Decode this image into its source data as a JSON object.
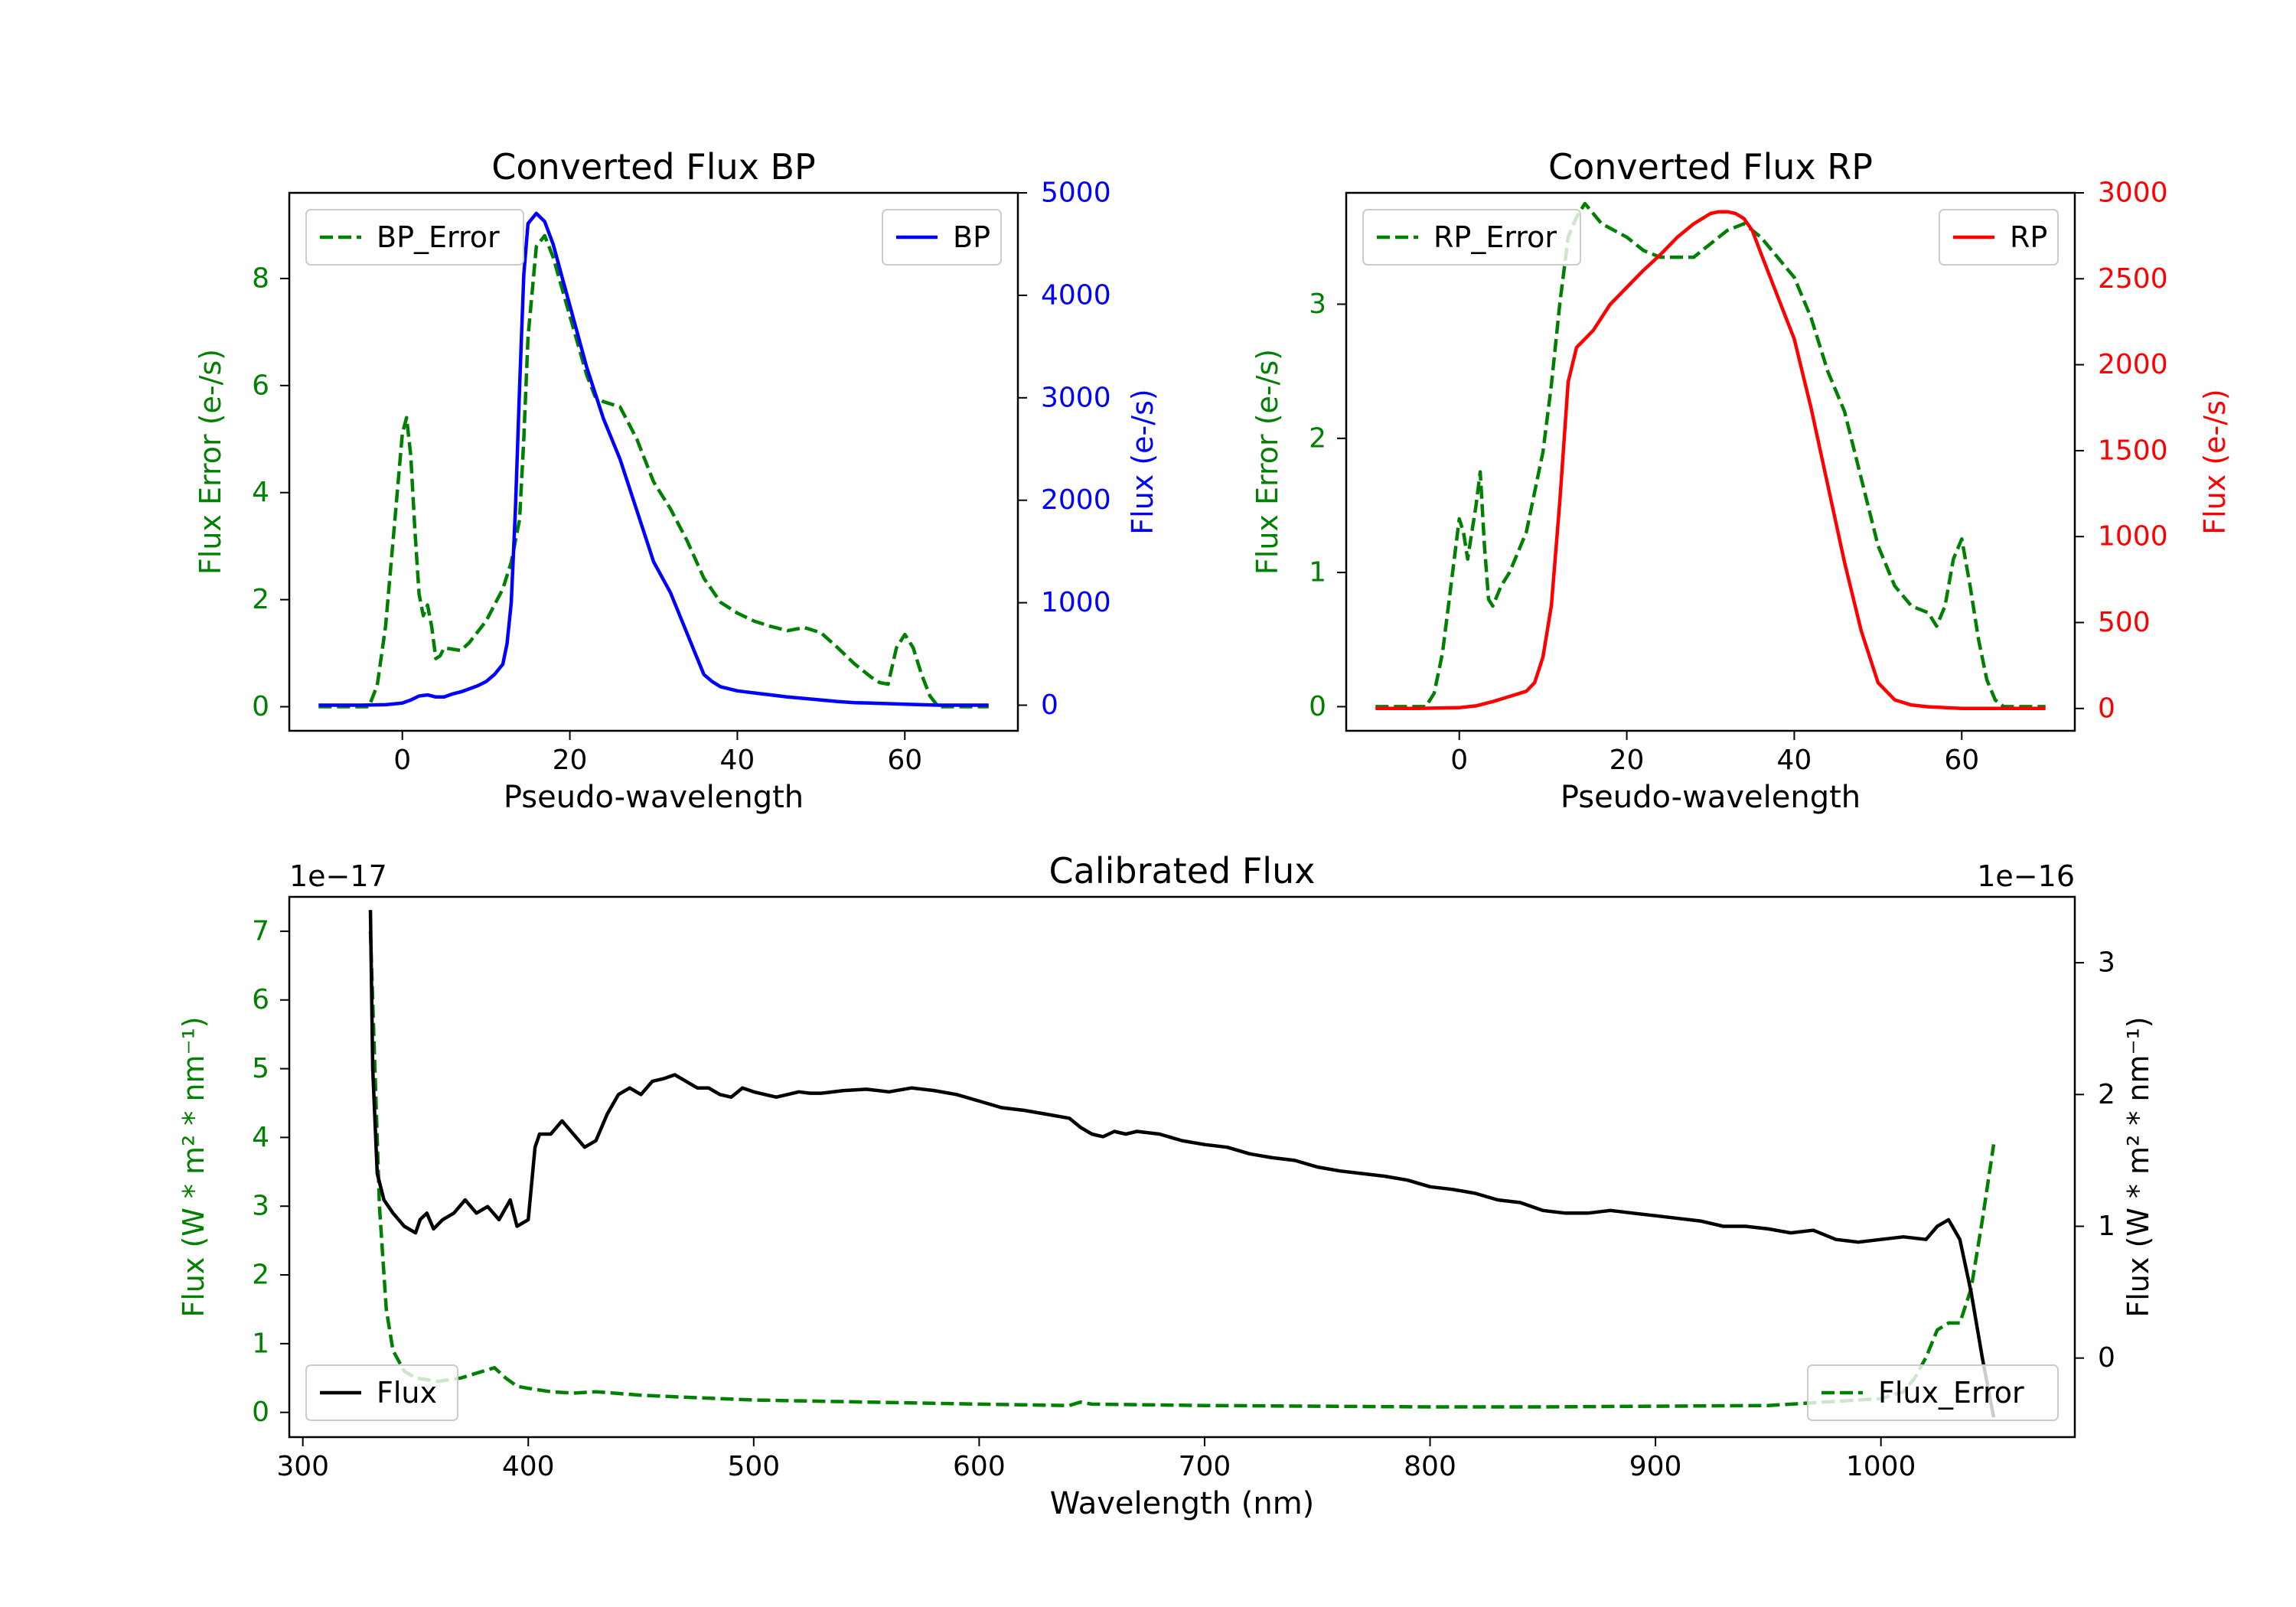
{
  "colors": {
    "green": "#008000",
    "blue": "#0000ff",
    "red": "#ff0000",
    "black": "#000000"
  },
  "chart_data": [
    {
      "id": "bp",
      "type": "line",
      "title": "Converted Flux BP",
      "xlabel": "Pseudo-wavelength",
      "ylabel_left": "Flux Error (e-/s)",
      "ylabel_right": "Flux (e-/s)",
      "xlim": [
        -13.5,
        73.5
      ],
      "ylim_left": [
        -0.45,
        9.6
      ],
      "ylim_right": [
        -250,
        5000
      ],
      "xticks": [
        0,
        20,
        40,
        60
      ],
      "yticks_left": [
        0,
        2,
        4,
        6,
        8
      ],
      "yticks_right": [
        0,
        1000,
        2000,
        3000,
        4000,
        5000
      ],
      "right_tick_color": "#0000ff",
      "series": [
        {
          "name": "BP_Error",
          "axis": "left",
          "style": "dashed",
          "color": "#008000",
          "x": [
            -10,
            -4,
            -3,
            -2,
            -1,
            0,
            0.5,
            1,
            1.5,
            2,
            2.5,
            3,
            3.5,
            4,
            4.5,
            5,
            7,
            8,
            10,
            12,
            13,
            14,
            14.5,
            15,
            16,
            17,
            18,
            20,
            22,
            23,
            24,
            26,
            28,
            30,
            32,
            34,
            36,
            38,
            40,
            42,
            44,
            46,
            48,
            50,
            52,
            54,
            56,
            57,
            58,
            59,
            60,
            61,
            62,
            63,
            64,
            70
          ],
          "y": [
            0,
            0,
            0.4,
            1.5,
            3.3,
            5.1,
            5.4,
            4.7,
            3.3,
            2.1,
            1.7,
            1.9,
            1.5,
            0.9,
            0.95,
            1.1,
            1.05,
            1.2,
            1.6,
            2.2,
            2.7,
            3.5,
            5,
            6.9,
            8.6,
            8.8,
            8.4,
            7.3,
            6.2,
            5.8,
            5.7,
            5.6,
            5,
            4.2,
            3.7,
            3.1,
            2.4,
            1.95,
            1.75,
            1.6,
            1.5,
            1.42,
            1.48,
            1.38,
            1.1,
            0.8,
            0.55,
            0.45,
            0.42,
            1.1,
            1.35,
            1.1,
            0.6,
            0.2,
            0,
            0
          ]
        },
        {
          "name": "BP",
          "axis": "right",
          "style": "solid",
          "color": "#0000ff",
          "x": [
            -10,
            -5,
            -2,
            0,
            1,
            2,
            3,
            4,
            5,
            6,
            7,
            8,
            9,
            10,
            11,
            12,
            12.5,
            13,
            13.5,
            14,
            14.5,
            15,
            15.5,
            16,
            17,
            18,
            19,
            20,
            22,
            24,
            26,
            28,
            30,
            32,
            34,
            35,
            36,
            37,
            38,
            40,
            42,
            44,
            46,
            48,
            50,
            52,
            54,
            56,
            58,
            60,
            62,
            64,
            66,
            70
          ],
          "y": [
            0,
            0,
            5,
            20,
            50,
            90,
            100,
            80,
            80,
            110,
            130,
            160,
            190,
            230,
            300,
            400,
            600,
            1000,
            1900,
            3100,
            4200,
            4700,
            4750,
            4800,
            4720,
            4500,
            4200,
            3900,
            3300,
            2800,
            2400,
            1900,
            1400,
            1100,
            700,
            500,
            300,
            230,
            180,
            140,
            120,
            100,
            80,
            65,
            50,
            35,
            25,
            20,
            15,
            10,
            5,
            0,
            0,
            0
          ]
        }
      ],
      "legend": [
        {
          "label": "BP_Error",
          "position": "top-left"
        },
        {
          "label": "BP",
          "position": "top-right"
        }
      ]
    },
    {
      "id": "rp",
      "type": "line",
      "title": "Converted Flux RP",
      "xlabel": "Pseudo-wavelength",
      "ylabel_left": "Flux Error (e-/s)",
      "ylabel_right": "Flux (e-/s)",
      "xlim": [
        -13.5,
        73.5
      ],
      "ylim_left": [
        -0.18,
        3.83
      ],
      "ylim_right": [
        -130,
        3000
      ],
      "xticks": [
        0,
        20,
        40,
        60
      ],
      "yticks_left": [
        0,
        1,
        2,
        3
      ],
      "yticks_right": [
        0,
        500,
        1000,
        1500,
        2000,
        2500,
        3000
      ],
      "right_tick_color": "#ff0000",
      "series": [
        {
          "name": "RP_Error",
          "axis": "left",
          "style": "dashed",
          "color": "#008000",
          "x": [
            -10,
            -4,
            -3,
            -2,
            -1,
            0,
            0.5,
            1,
            1.5,
            2,
            2.5,
            3,
            3.5,
            4,
            5,
            6,
            8,
            10,
            11,
            12,
            13,
            14,
            15,
            17,
            20,
            22,
            24,
            26,
            28,
            30,
            32,
            34,
            36,
            38,
            40,
            42,
            44,
            46,
            48,
            50,
            52,
            54,
            56,
            57,
            58,
            59,
            60,
            61,
            62,
            63,
            64,
            65,
            70
          ],
          "y": [
            0,
            0,
            0.1,
            0.4,
            0.9,
            1.4,
            1.3,
            1.1,
            1.3,
            1.5,
            1.75,
            1.2,
            0.8,
            0.75,
            0.9,
            1,
            1.3,
            1.9,
            2.4,
            3,
            3.5,
            3.65,
            3.75,
            3.6,
            3.5,
            3.4,
            3.35,
            3.35,
            3.35,
            3.45,
            3.55,
            3.6,
            3.5,
            3.35,
            3.2,
            2.9,
            2.5,
            2.2,
            1.7,
            1.2,
            0.9,
            0.75,
            0.7,
            0.6,
            0.75,
            1.1,
            1.25,
            0.9,
            0.5,
            0.2,
            0.05,
            0,
            0
          ]
        },
        {
          "name": "RP",
          "axis": "right",
          "style": "solid",
          "color": "#ff0000",
          "x": [
            -10,
            -5,
            0,
            2,
            4,
            6,
            8,
            9,
            10,
            11,
            12,
            13,
            14,
            15,
            16,
            18,
            20,
            22,
            24,
            26,
            28,
            30,
            31,
            32,
            33,
            34,
            35,
            36,
            38,
            40,
            42,
            44,
            46,
            48,
            50,
            52,
            54,
            56,
            58,
            60,
            62,
            64,
            66,
            70
          ],
          "y": [
            0,
            0,
            5,
            15,
            40,
            70,
            100,
            150,
            300,
            600,
            1200,
            1900,
            2100,
            2150,
            2200,
            2350,
            2450,
            2550,
            2640,
            2740,
            2820,
            2880,
            2890,
            2890,
            2880,
            2850,
            2780,
            2650,
            2400,
            2150,
            1750,
            1300,
            850,
            450,
            150,
            50,
            20,
            10,
            5,
            0,
            0,
            0,
            0,
            0
          ]
        }
      ],
      "legend": [
        {
          "label": "RP_Error",
          "position": "top-left"
        },
        {
          "label": "RP",
          "position": "top-right"
        }
      ]
    },
    {
      "id": "cal",
      "type": "line",
      "title": "Calibrated Flux",
      "xlabel": "Wavelength (nm)",
      "ylabel_left": "Flux (W * m² * nm⁻¹)",
      "ylabel_right": "Flux (W * m² * nm⁻¹)",
      "offset_left": "1e−17",
      "offset_right": "1e−16",
      "xlim": [
        294,
        1086
      ],
      "ylim_left": [
        -0.36,
        7.5
      ],
      "ylim_right": [
        -0.6,
        3.5
      ],
      "xticks": [
        300,
        400,
        500,
        600,
        700,
        800,
        900,
        1000
      ],
      "yticks_left": [
        0,
        1,
        2,
        3,
        4,
        5,
        6,
        7
      ],
      "yticks_right": [
        0,
        1,
        2,
        3
      ],
      "right_tick_color": "#000000",
      "series": [
        {
          "name": "Flux_Error",
          "axis": "left",
          "style": "dashed",
          "color": "#008000",
          "x": [
            330,
            332,
            334,
            337,
            340,
            345,
            350,
            360,
            370,
            380,
            385,
            390,
            395,
            400,
            410,
            420,
            430,
            450,
            470,
            500,
            550,
            600,
            640,
            645,
            650,
            700,
            750,
            800,
            850,
            900,
            950,
            1000,
            1010,
            1015,
            1020,
            1025,
            1030,
            1035,
            1040,
            1045,
            1050
          ],
          "y": [
            7,
            5,
            3,
            1.5,
            0.9,
            0.6,
            0.5,
            0.45,
            0.5,
            0.6,
            0.65,
            0.5,
            0.38,
            0.35,
            0.3,
            0.28,
            0.3,
            0.25,
            0.22,
            0.18,
            0.15,
            0.12,
            0.1,
            0.15,
            0.12,
            0.1,
            0.09,
            0.08,
            0.08,
            0.09,
            0.1,
            0.2,
            0.3,
            0.5,
            0.8,
            1.2,
            1.3,
            1.3,
            1.8,
            2.8,
            3.9
          ]
        },
        {
          "name": "Flux",
          "axis": "right",
          "style": "solid",
          "color": "#000000",
          "x": [
            330,
            331,
            333,
            336,
            340,
            345,
            350,
            352,
            355,
            358,
            362,
            367,
            372,
            377,
            382,
            387,
            392,
            395,
            400,
            403,
            405,
            410,
            415,
            420,
            425,
            430,
            435,
            440,
            445,
            450,
            455,
            460,
            465,
            470,
            475,
            480,
            485,
            490,
            495,
            500,
            505,
            510,
            515,
            520,
            525,
            530,
            540,
            550,
            560,
            570,
            580,
            590,
            600,
            610,
            620,
            630,
            640,
            645,
            650,
            655,
            660,
            665,
            670,
            680,
            690,
            700,
            710,
            720,
            730,
            740,
            750,
            760,
            770,
            780,
            790,
            800,
            810,
            820,
            830,
            840,
            850,
            860,
            870,
            880,
            890,
            900,
            910,
            920,
            930,
            940,
            950,
            960,
            970,
            980,
            990,
            1000,
            1010,
            1020,
            1025,
            1030,
            1035,
            1040,
            1045,
            1050
          ],
          "y": [
            3.4,
            2.2,
            1.4,
            1.2,
            1.1,
            1,
            0.95,
            1.05,
            1.1,
            0.98,
            1.05,
            1.1,
            1.2,
            1.1,
            1.15,
            1.05,
            1.2,
            1.0,
            1.05,
            1.6,
            1.7,
            1.7,
            1.8,
            1.7,
            1.6,
            1.65,
            1.85,
            2,
            2.05,
            2,
            2.1,
            2.12,
            2.15,
            2.1,
            2.05,
            2.05,
            2,
            1.98,
            2.05,
            2.02,
            2,
            1.98,
            2.0,
            2.02,
            2.01,
            2.01,
            2.03,
            2.04,
            2.02,
            2.05,
            2.03,
            2.0,
            1.95,
            1.9,
            1.88,
            1.85,
            1.82,
            1.75,
            1.7,
            1.68,
            1.72,
            1.7,
            1.72,
            1.7,
            1.65,
            1.62,
            1.6,
            1.55,
            1.52,
            1.5,
            1.45,
            1.42,
            1.4,
            1.38,
            1.35,
            1.3,
            1.28,
            1.25,
            1.2,
            1.18,
            1.12,
            1.1,
            1.1,
            1.12,
            1.1,
            1.08,
            1.06,
            1.04,
            1.0,
            1.0,
            0.98,
            0.95,
            0.97,
            0.9,
            0.88,
            0.9,
            0.92,
            0.9,
            1.0,
            1.05,
            0.9,
            0.5,
            0.0,
            -0.45
          ]
        }
      ],
      "legend": [
        {
          "label": "Flux",
          "position": "lower-left"
        },
        {
          "label": "Flux_Error",
          "position": "lower-right"
        }
      ]
    }
  ]
}
